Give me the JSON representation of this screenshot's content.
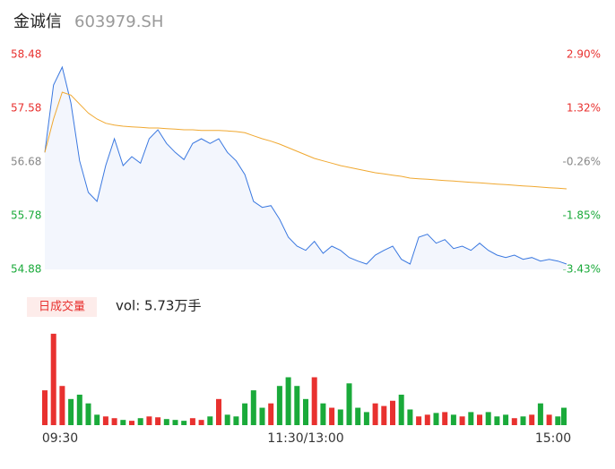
{
  "chart_data": {
    "type": "line",
    "title": "金诚信",
    "subtitle": "603979.SH",
    "volume_label": "日成交量",
    "volume_text": "vol: 5.73万手",
    "x": [
      0,
      4,
      8,
      12,
      16,
      20,
      24,
      28,
      32,
      36,
      40,
      44,
      48,
      52,
      56,
      60,
      64,
      68,
      72,
      76,
      80,
      84,
      88,
      92,
      96,
      100,
      104,
      108,
      112,
      116,
      120,
      124,
      128,
      132,
      136,
      140,
      144,
      148,
      152,
      156,
      160,
      164,
      168,
      172,
      176,
      180,
      184,
      188,
      192,
      196,
      200,
      204,
      208,
      212,
      216,
      220,
      224,
      228,
      232,
      236,
      240
    ],
    "xlim": [
      0,
      240
    ],
    "xticks": [
      {
        "value": 0,
        "label": "09:30"
      },
      {
        "value": 120,
        "label": "11:30/13:00"
      },
      {
        "value": 240,
        "label": "15:00"
      }
    ],
    "ylim": [
      54.88,
      58.48
    ],
    "yticks": [
      58.48,
      57.58,
      56.68,
      55.78,
      54.88
    ],
    "y2lim": [
      -3.43,
      2.9
    ],
    "y2ticks": [
      {
        "value": 2.9,
        "label": "2.90%"
      },
      {
        "value": 1.32,
        "label": "1.32%"
      },
      {
        "value": -0.26,
        "label": "-0.26%"
      },
      {
        "value": -1.85,
        "label": "-1.85%"
      },
      {
        "value": -3.43,
        "label": "-3.43%"
      }
    ],
    "series": [
      {
        "color": "#3a78e0",
        "values": [
          56.84,
          57.97,
          58.27,
          57.67,
          56.7,
          56.17,
          56.02,
          56.62,
          57.07,
          56.62,
          56.77,
          56.66,
          57.07,
          57.22,
          56.99,
          56.84,
          56.72,
          56.99,
          57.07,
          56.99,
          57.07,
          56.84,
          56.7,
          56.47,
          56.02,
          55.92,
          55.95,
          55.72,
          55.42,
          55.27,
          55.2,
          55.35,
          55.15,
          55.27,
          55.2,
          55.08,
          55.02,
          54.97,
          55.12,
          55.2,
          55.27,
          55.05,
          54.97,
          55.42,
          55.47,
          55.32,
          55.38,
          55.23,
          55.27,
          55.2,
          55.32,
          55.2,
          55.12,
          55.08,
          55.12,
          55.05,
          55.08,
          55.02,
          55.05,
          55.02,
          54.97
        ]
      },
      {
        "color": "#f0a830",
        "values": [
          56.84,
          57.4,
          57.85,
          57.8,
          57.65,
          57.5,
          57.4,
          57.33,
          57.3,
          57.28,
          57.27,
          57.26,
          57.25,
          57.25,
          57.24,
          57.23,
          57.22,
          57.22,
          57.21,
          57.21,
          57.21,
          57.2,
          57.19,
          57.17,
          57.12,
          57.07,
          57.03,
          56.98,
          56.92,
          56.86,
          56.8,
          56.74,
          56.7,
          56.66,
          56.62,
          56.59,
          56.56,
          56.53,
          56.5,
          56.48,
          56.46,
          56.44,
          56.41,
          56.4,
          56.39,
          56.38,
          56.37,
          56.36,
          56.35,
          56.34,
          56.33,
          56.32,
          56.31,
          56.3,
          56.29,
          56.28,
          56.27,
          56.26,
          56.25,
          56.24,
          56.23
        ]
      }
    ],
    "volume": {
      "ylim": [
        0,
        110
      ],
      "up_color": "#e8312f",
      "down_color": "#1aaa3a",
      "values": [
        40,
        105,
        45,
        30,
        35,
        25,
        12,
        10,
        8,
        6,
        5,
        8,
        10,
        9,
        7,
        6,
        5,
        8,
        6,
        10,
        30,
        12,
        10,
        25,
        40,
        20,
        25,
        45,
        55,
        45,
        30,
        55,
        25,
        20,
        18,
        48,
        20,
        15,
        25,
        22,
        28,
        35,
        18,
        10,
        12,
        14,
        15,
        12,
        10,
        15,
        12,
        15,
        10,
        12,
        8,
        10,
        12,
        25,
        12,
        10,
        20
      ]
    }
  }
}
